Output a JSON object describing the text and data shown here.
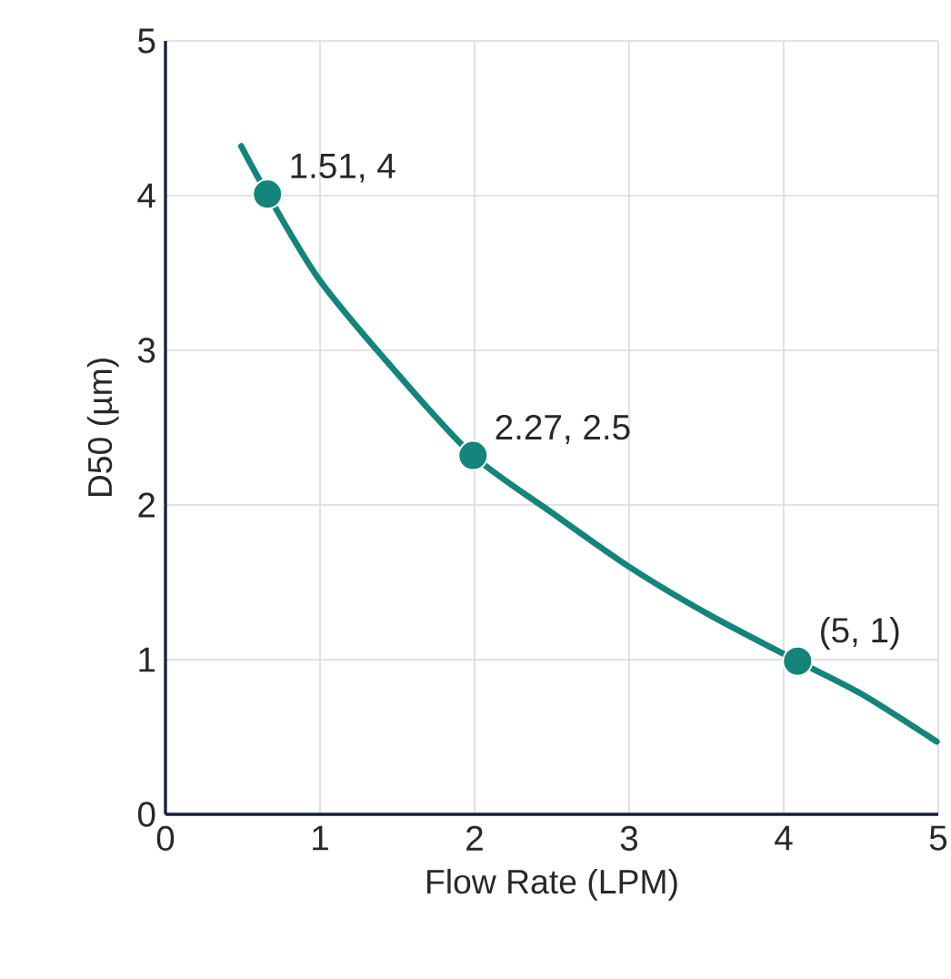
{
  "chart_data": {
    "type": "line",
    "xlabel": "Flow Rate (LPM)",
    "ylabel": "D50 (µm)",
    "xlim": [
      0,
      5
    ],
    "ylim": [
      0,
      5
    ],
    "xticks": [
      0,
      1,
      2,
      3,
      4,
      5
    ],
    "yticks": [
      0,
      1,
      2,
      3,
      4,
      5
    ],
    "grid": true,
    "series": [
      {
        "color": "#13857a",
        "line_style": "solid",
        "x": [
          0.49,
          0.66,
          1.0,
          1.5,
          1.99,
          2.5,
          3.0,
          3.5,
          4.09,
          4.5,
          4.99
        ],
        "values": [
          4.32,
          4.01,
          3.45,
          2.85,
          2.32,
          1.95,
          1.6,
          1.3,
          0.99,
          0.78,
          0.47
        ]
      },
      {
        "type": "scatter",
        "color": "#13857a",
        "marker": "circle",
        "x": [
          0.66,
          1.99,
          4.09
        ],
        "values": [
          4.01,
          2.32,
          0.99
        ]
      }
    ],
    "annotations": [
      {
        "text": "1.51, 4",
        "x": 0.66,
        "y": 4.01
      },
      {
        "text": "2.27, 2.5",
        "x": 1.99,
        "y": 2.32
      },
      {
        "text": "(5, 1)",
        "x": 4.09,
        "y": 0.99
      }
    ]
  }
}
